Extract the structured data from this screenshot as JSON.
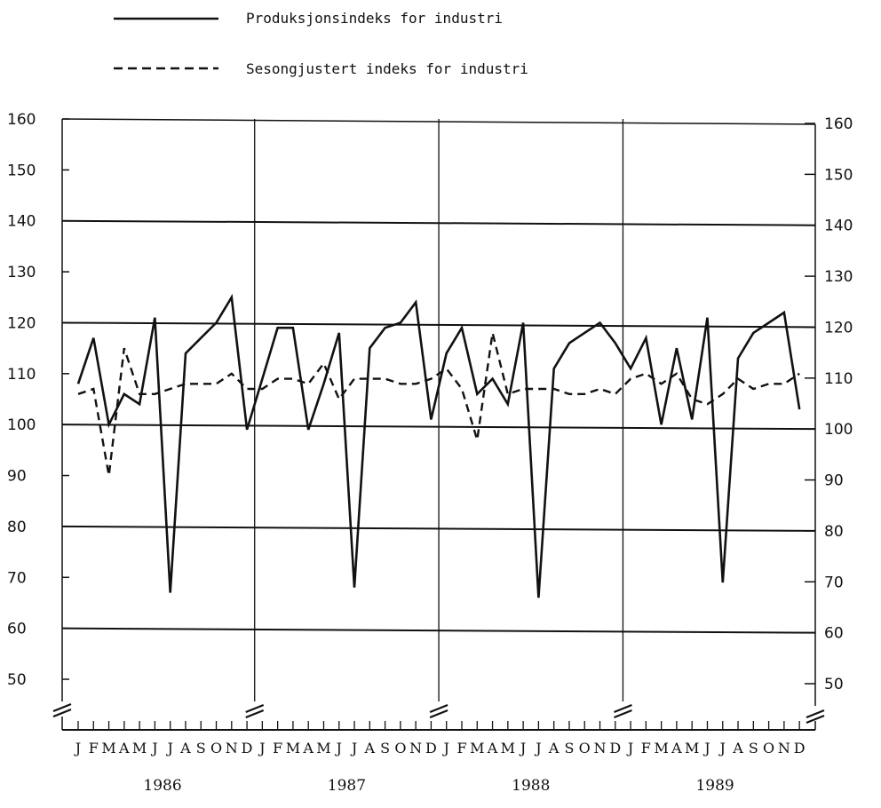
{
  "legend": {
    "items": [
      {
        "label": "Produksjonsindeks for industri",
        "style": "solid"
      },
      {
        "label": "Sesongjustert indeks for industri",
        "style": "dashed"
      }
    ]
  },
  "chart_data": {
    "type": "line",
    "title": "",
    "xlabel": "",
    "ylabel": "",
    "ylim": [
      50,
      160
    ],
    "yticks": [
      50,
      60,
      70,
      80,
      90,
      100,
      110,
      120,
      130,
      140,
      150,
      160
    ],
    "axis_break": true,
    "grid": "horizontal lines at 60, 80, 100, 120, 140; vertical lines at year boundaries",
    "legend_position": "top",
    "month_labels": [
      "J",
      "F",
      "M",
      "A",
      "M",
      "J",
      "J",
      "A",
      "S",
      "O",
      "N",
      "D"
    ],
    "years": [
      "1986",
      "1987",
      "1988",
      "1989"
    ],
    "series": [
      {
        "name": "Produksjonsindeks for industri",
        "style": "solid",
        "values": [
          108,
          117,
          100,
          106,
          104,
          121,
          67,
          114,
          117,
          120,
          125,
          99,
          109,
          119,
          119,
          99,
          108,
          118,
          68,
          115,
          119,
          120,
          124,
          101,
          114,
          119,
          106,
          109,
          104,
          120,
          66,
          111,
          116,
          118,
          120,
          116,
          111,
          117,
          100,
          115,
          101,
          121,
          69,
          113,
          118,
          120,
          122,
          103
        ]
      },
      {
        "name": "Sesongjustert indeks for industri",
        "style": "dashed",
        "values": [
          106,
          107,
          90,
          115,
          106,
          106,
          107,
          108,
          108,
          108,
          110,
          107,
          107,
          109,
          109,
          108,
          112,
          105,
          109,
          109,
          109,
          108,
          108,
          109,
          111,
          107,
          97,
          118,
          106,
          107,
          107,
          107,
          106,
          106,
          107,
          106,
          109,
          110,
          108,
          110,
          105,
          104,
          106,
          109,
          107,
          108,
          108,
          110
        ]
      }
    ]
  }
}
